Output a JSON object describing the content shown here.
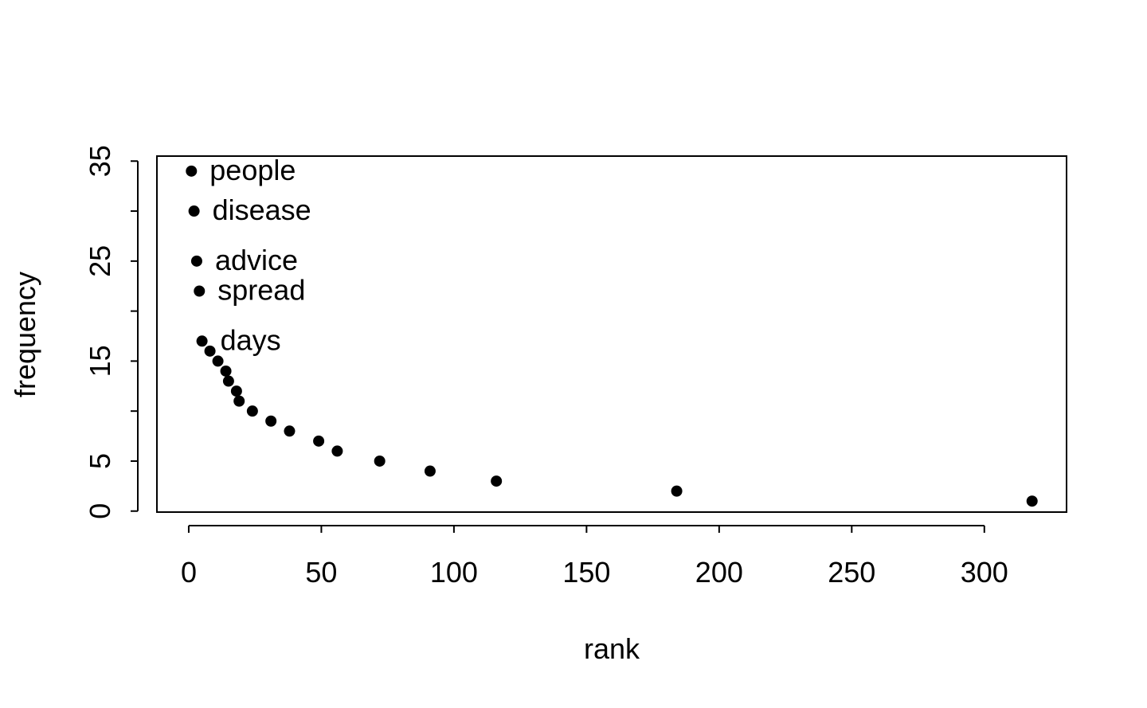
{
  "chart_data": {
    "type": "scatter",
    "title": "",
    "xlabel": "rank",
    "ylabel": "frequency",
    "xlim": [
      -12,
      331
    ],
    "ylim": [
      -0.1,
      35.5
    ],
    "xticks": [
      0,
      50,
      100,
      150,
      200,
      250,
      300
    ],
    "xtick_labels": [
      "0",
      "50",
      "100",
      "150",
      "200",
      "250",
      "300"
    ],
    "yticks": [
      0,
      5,
      10,
      15,
      20,
      25,
      30,
      35
    ],
    "ytick_labels": [
      "0",
      "5",
      "",
      "15",
      "",
      "25",
      "",
      "35"
    ],
    "grid": false,
    "marker_color": "#000000",
    "points": [
      {
        "x": 1,
        "y": 34,
        "label": "people"
      },
      {
        "x": 2,
        "y": 30,
        "label": "disease"
      },
      {
        "x": 3,
        "y": 25,
        "label": "advice"
      },
      {
        "x": 4,
        "y": 22,
        "label": "spread"
      },
      {
        "x": 5,
        "y": 17,
        "label": "days"
      },
      {
        "x": 8,
        "y": 16,
        "label": ""
      },
      {
        "x": 11,
        "y": 15,
        "label": ""
      },
      {
        "x": 14,
        "y": 14,
        "label": ""
      },
      {
        "x": 15,
        "y": 13,
        "label": ""
      },
      {
        "x": 18,
        "y": 12,
        "label": ""
      },
      {
        "x": 19,
        "y": 11,
        "label": ""
      },
      {
        "x": 24,
        "y": 10,
        "label": ""
      },
      {
        "x": 31,
        "y": 9,
        "label": ""
      },
      {
        "x": 38,
        "y": 8,
        "label": ""
      },
      {
        "x": 49,
        "y": 7,
        "label": ""
      },
      {
        "x": 56,
        "y": 6,
        "label": ""
      },
      {
        "x": 72,
        "y": 5,
        "label": ""
      },
      {
        "x": 91,
        "y": 4,
        "label": ""
      },
      {
        "x": 116,
        "y": 3,
        "label": ""
      },
      {
        "x": 184,
        "y": 2,
        "label": ""
      },
      {
        "x": 318,
        "y": 1,
        "label": ""
      }
    ]
  }
}
